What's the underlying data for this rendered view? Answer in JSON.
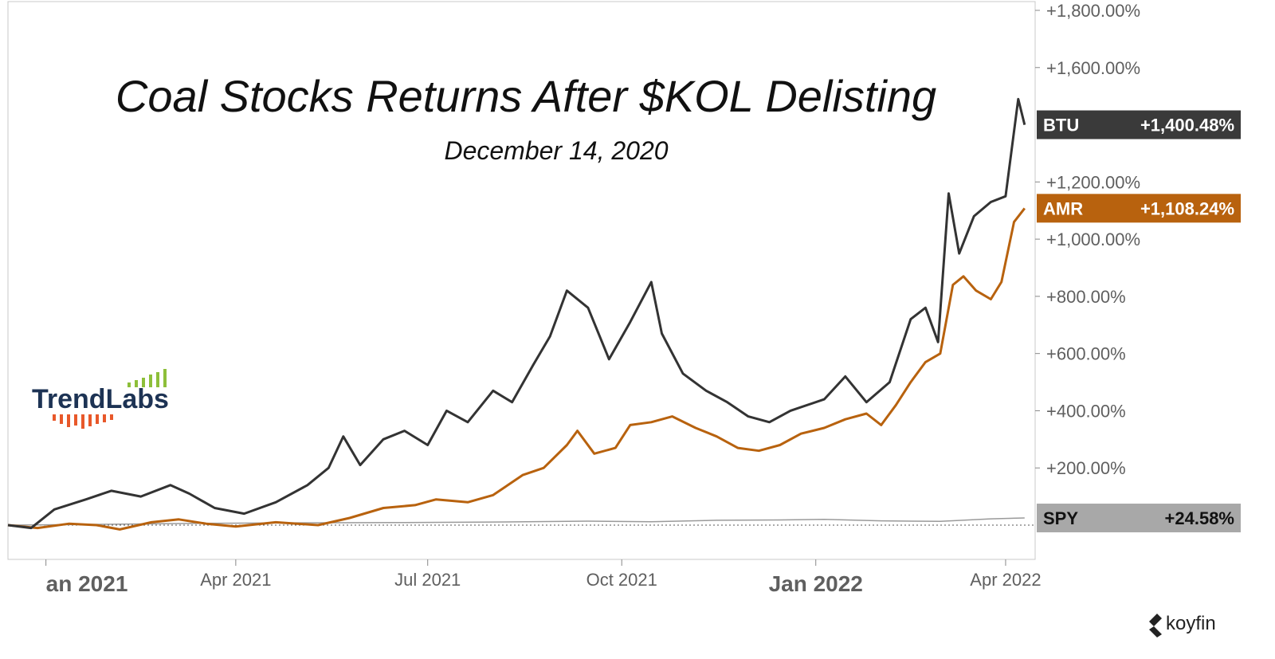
{
  "chart_data": {
    "type": "line",
    "title": "Coal Stocks Returns After $KOL Delisting",
    "subtitle": "December 14, 2020",
    "y_ticks": [
      "+1,800.00%",
      "+1,600.00%",
      "+1,200.00%",
      "+1,000.00%",
      "+800.00%",
      "+600.00%",
      "+400.00%",
      "+200.00%"
    ],
    "y_tick_values": [
      1800,
      1600,
      1200,
      1000,
      800,
      600,
      400,
      200
    ],
    "x_ticks": [
      {
        "label": "an 2021",
        "date": "2021-01-01",
        "major": true
      },
      {
        "label": "Apr 2021",
        "date": "2021-04-01",
        "major": false
      },
      {
        "label": "Jul 2021",
        "date": "2021-07-01",
        "major": false
      },
      {
        "label": "Oct 2021",
        "date": "2021-10-01",
        "major": false
      },
      {
        "label": "Jan 2022",
        "date": "2022-01-01",
        "major": true
      },
      {
        "label": "Apr 2022",
        "date": "2022-04-01",
        "major": false
      }
    ],
    "x_range": [
      "2020-12-14",
      "2022-04-15"
    ],
    "ylim": [
      -100,
      1850
    ],
    "grid": false,
    "series": [
      {
        "name": "SPY",
        "color": "#9a9a9a",
        "last_value_label": "+24.58%",
        "points": [
          [
            "2020-12-14",
            0
          ],
          [
            "2021-02-01",
            3
          ],
          [
            "2021-03-15",
            6
          ],
          [
            "2021-05-01",
            8
          ],
          [
            "2021-06-15",
            9
          ],
          [
            "2021-08-01",
            11
          ],
          [
            "2021-09-15",
            14
          ],
          [
            "2021-10-15",
            12
          ],
          [
            "2021-11-15",
            17
          ],
          [
            "2021-12-15",
            18
          ],
          [
            "2022-01-05",
            20
          ],
          [
            "2022-02-01",
            15
          ],
          [
            "2022-03-01",
            13
          ],
          [
            "2022-03-25",
            22
          ],
          [
            "2022-04-10",
            25
          ]
        ]
      },
      {
        "name": "AMR",
        "color": "#b8620e",
        "last_value_label": "+1,108.24%",
        "points": [
          [
            "2020-12-14",
            0
          ],
          [
            "2020-12-28",
            -10
          ],
          [
            "2021-01-12",
            5
          ],
          [
            "2021-01-25",
            0
          ],
          [
            "2021-02-05",
            -15
          ],
          [
            "2021-02-20",
            10
          ],
          [
            "2021-03-05",
            20
          ],
          [
            "2021-03-18",
            5
          ],
          [
            "2021-04-01",
            -5
          ],
          [
            "2021-04-20",
            10
          ],
          [
            "2021-05-10",
            0
          ],
          [
            "2021-05-25",
            25
          ],
          [
            "2021-06-10",
            60
          ],
          [
            "2021-06-25",
            70
          ],
          [
            "2021-07-05",
            90
          ],
          [
            "2021-07-20",
            80
          ],
          [
            "2021-08-01",
            105
          ],
          [
            "2021-08-15",
            175
          ],
          [
            "2021-08-25",
            200
          ],
          [
            "2021-09-05",
            280
          ],
          [
            "2021-09-10",
            330
          ],
          [
            "2021-09-18",
            250
          ],
          [
            "2021-09-28",
            270
          ],
          [
            "2021-10-05",
            350
          ],
          [
            "2021-10-15",
            360
          ],
          [
            "2021-10-25",
            380
          ],
          [
            "2021-11-05",
            340
          ],
          [
            "2021-11-15",
            310
          ],
          [
            "2021-11-25",
            270
          ],
          [
            "2021-12-05",
            260
          ],
          [
            "2021-12-15",
            280
          ],
          [
            "2021-12-25",
            320
          ],
          [
            "2022-01-05",
            340
          ],
          [
            "2022-01-15",
            370
          ],
          [
            "2022-01-25",
            390
          ],
          [
            "2022-02-01",
            350
          ],
          [
            "2022-02-08",
            420
          ],
          [
            "2022-02-15",
            500
          ],
          [
            "2022-02-22",
            570
          ],
          [
            "2022-03-01",
            600
          ],
          [
            "2022-03-07",
            840
          ],
          [
            "2022-03-12",
            870
          ],
          [
            "2022-03-18",
            820
          ],
          [
            "2022-03-25",
            790
          ],
          [
            "2022-03-30",
            850
          ],
          [
            "2022-04-05",
            1060
          ],
          [
            "2022-04-10",
            1108
          ]
        ]
      },
      {
        "name": "BTU",
        "color": "#333333",
        "last_value_label": "+1,400.48%",
        "points": [
          [
            "2020-12-14",
            0
          ],
          [
            "2020-12-25",
            -10
          ],
          [
            "2021-01-05",
            55
          ],
          [
            "2021-01-20",
            90
          ],
          [
            "2021-02-01",
            120
          ],
          [
            "2021-02-15",
            100
          ],
          [
            "2021-03-01",
            140
          ],
          [
            "2021-03-10",
            110
          ],
          [
            "2021-03-22",
            60
          ],
          [
            "2021-04-05",
            40
          ],
          [
            "2021-04-20",
            80
          ],
          [
            "2021-05-05",
            140
          ],
          [
            "2021-05-15",
            200
          ],
          [
            "2021-05-22",
            310
          ],
          [
            "2021-05-30",
            210
          ],
          [
            "2021-06-10",
            300
          ],
          [
            "2021-06-20",
            330
          ],
          [
            "2021-07-01",
            280
          ],
          [
            "2021-07-10",
            400
          ],
          [
            "2021-07-20",
            360
          ],
          [
            "2021-08-01",
            470
          ],
          [
            "2021-08-10",
            430
          ],
          [
            "2021-08-20",
            560
          ],
          [
            "2021-08-28",
            660
          ],
          [
            "2021-09-05",
            820
          ],
          [
            "2021-09-15",
            760
          ],
          [
            "2021-09-25",
            580
          ],
          [
            "2021-10-05",
            710
          ],
          [
            "2021-10-15",
            850
          ],
          [
            "2021-10-20",
            670
          ],
          [
            "2021-10-30",
            530
          ],
          [
            "2021-11-10",
            470
          ],
          [
            "2021-11-20",
            430
          ],
          [
            "2021-11-30",
            380
          ],
          [
            "2021-12-10",
            360
          ],
          [
            "2021-12-20",
            400
          ],
          [
            "2022-01-05",
            440
          ],
          [
            "2022-01-15",
            520
          ],
          [
            "2022-01-25",
            430
          ],
          [
            "2022-02-05",
            500
          ],
          [
            "2022-02-15",
            720
          ],
          [
            "2022-02-22",
            760
          ],
          [
            "2022-02-28",
            640
          ],
          [
            "2022-03-05",
            1160
          ],
          [
            "2022-03-10",
            950
          ],
          [
            "2022-03-17",
            1080
          ],
          [
            "2022-03-25",
            1130
          ],
          [
            "2022-04-01",
            1150
          ],
          [
            "2022-04-07",
            1490
          ],
          [
            "2022-04-10",
            1400
          ]
        ]
      }
    ]
  },
  "logo": {
    "name": "TrendLabs",
    "text": "TrendLabs"
  },
  "watermark": {
    "icon": "koyfin-logo-icon",
    "text": "koyfin"
  }
}
